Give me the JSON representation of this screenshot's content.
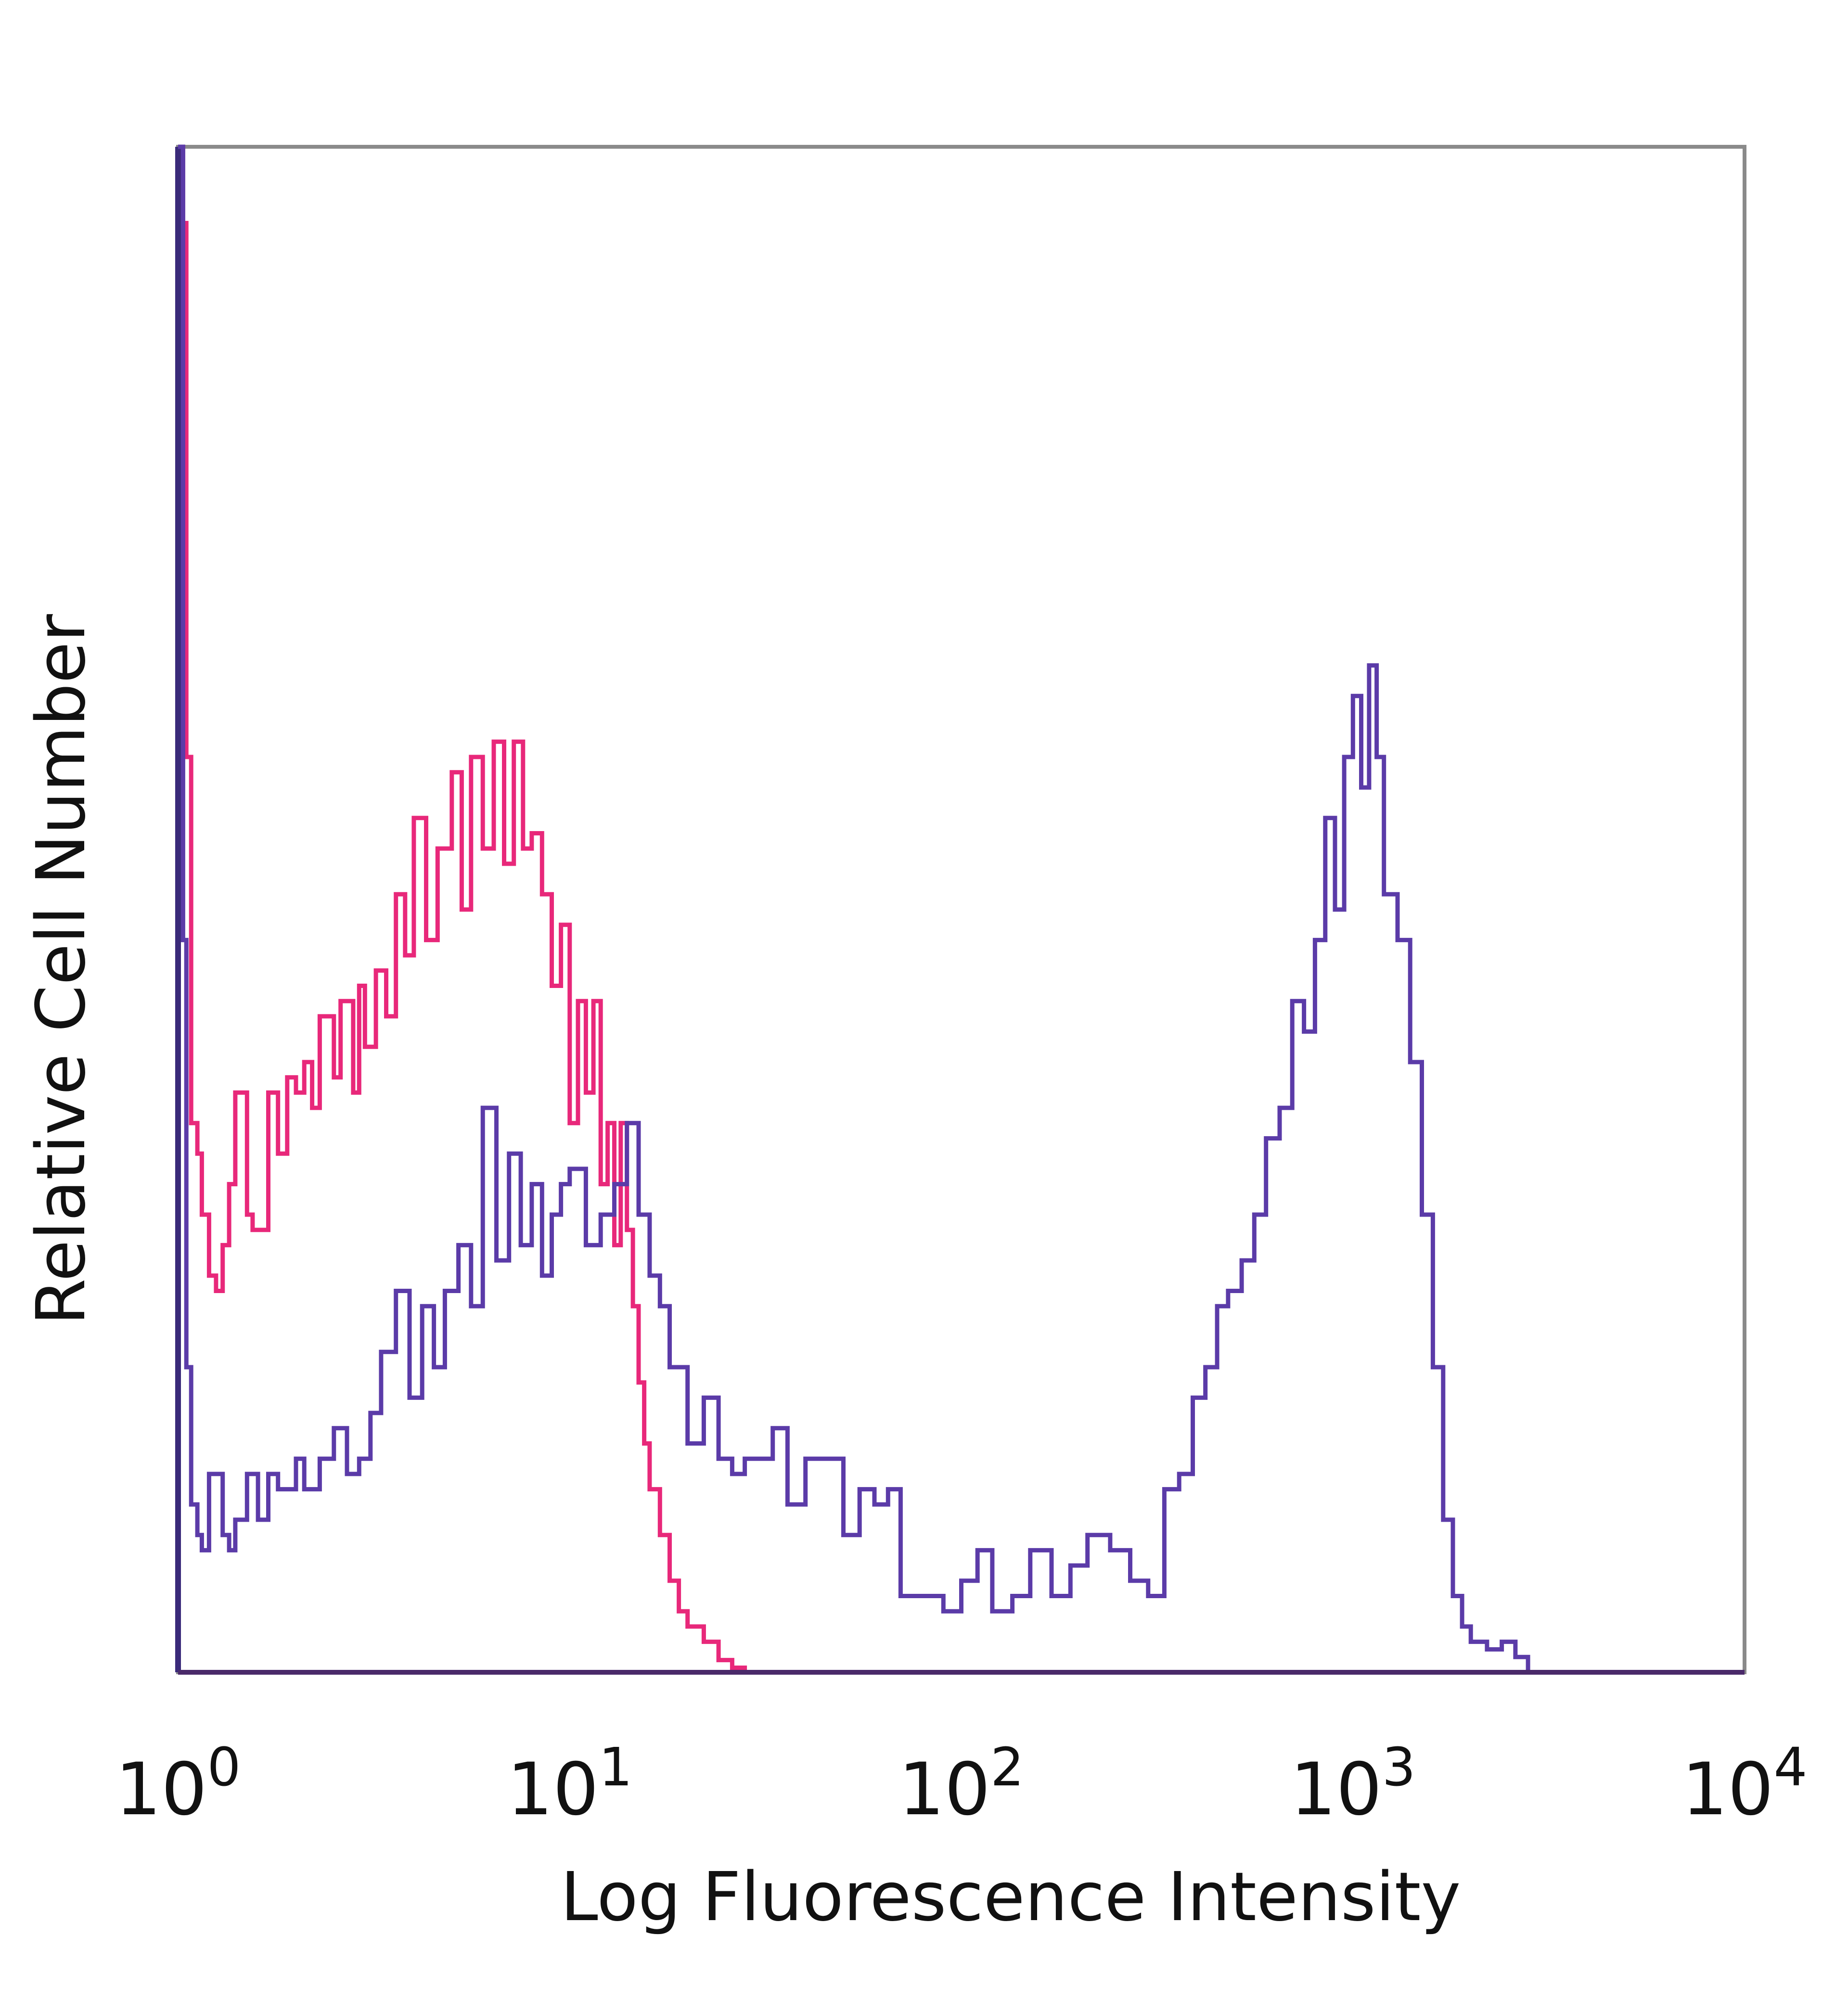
{
  "chart_data": {
    "type": "line",
    "title": "",
    "xlabel": "Log Fluorescence Intensity",
    "ylabel": "Relative Cell Number",
    "x_scale": "log",
    "xlim": [
      1,
      10000
    ],
    "ylim": [
      0,
      100
    ],
    "grid": false,
    "legend": "none",
    "x_ticks": [
      {
        "value": 1,
        "base": "10",
        "exp": "0"
      },
      {
        "value": 10,
        "base": "10",
        "exp": "1"
      },
      {
        "value": 100,
        "base": "10",
        "exp": "2"
      },
      {
        "value": 1000,
        "base": "10",
        "exp": "3"
      },
      {
        "value": 10000,
        "base": "10",
        "exp": "4"
      }
    ],
    "series": [
      {
        "color": "#e8287a",
        "x": [
          1,
          1.03,
          1.05,
          1.08,
          1.12,
          1.15,
          1.2,
          1.25,
          1.3,
          1.35,
          1.4,
          1.5,
          1.55,
          1.6,
          1.7,
          1.8,
          1.9,
          2.0,
          2.1,
          2.2,
          2.3,
          2.5,
          2.6,
          2.8,
          2.9,
          3.0,
          3.2,
          3.4,
          3.6,
          3.8,
          4.0,
          4.3,
          4.6,
          5.0,
          5.3,
          5.6,
          6.0,
          6.4,
          6.8,
          7.2,
          7.6,
          8.0,
          8.5,
          9.0,
          9.5,
          10,
          10.5,
          11,
          11.5,
          12,
          12.5,
          13,
          13.5,
          14,
          14.5,
          15,
          15.5,
          16,
          17,
          18,
          19,
          20,
          22,
          24,
          26,
          28,
          30,
          40,
          100,
          1000,
          10000
        ],
        "y": [
          100,
          95,
          60,
          36,
          34,
          30,
          26,
          25,
          28,
          32,
          38,
          30,
          29,
          29,
          38,
          34,
          39,
          38,
          40,
          37,
          43,
          39,
          44,
          38,
          45,
          41,
          46,
          43,
          51,
          47,
          56,
          48,
          54,
          59,
          50,
          60,
          54,
          61,
          53,
          61,
          54,
          55,
          51,
          45,
          49,
          36,
          44,
          38,
          44,
          32,
          36,
          28,
          36,
          29,
          24,
          19,
          15,
          12,
          9,
          6,
          4,
          3,
          2,
          0.8,
          0.3,
          0,
          0,
          0,
          0,
          0,
          0
        ]
      },
      {
        "color": "#5b3ba8",
        "x": [
          1,
          1.03,
          1.05,
          1.08,
          1.12,
          1.15,
          1.2,
          1.3,
          1.35,
          1.4,
          1.5,
          1.6,
          1.7,
          1.8,
          2.0,
          2.1,
          2.3,
          2.5,
          2.7,
          2.9,
          3.1,
          3.3,
          3.6,
          3.9,
          4.2,
          4.5,
          4.8,
          5.2,
          5.6,
          6.0,
          6.5,
          7.0,
          7.5,
          8.0,
          8.5,
          9.0,
          9.5,
          10,
          11,
          12,
          13,
          14,
          15,
          16,
          17,
          18,
          20,
          22,
          24,
          26,
          28,
          30,
          33,
          36,
          40,
          45,
          50,
          55,
          60,
          65,
          70,
          80,
          90,
          100,
          110,
          120,
          135,
          150,
          170,
          190,
          210,
          240,
          270,
          300,
          330,
          360,
          390,
          420,
          450,
          480,
          520,
          560,
          600,
          650,
          700,
          750,
          800,
          850,
          900,
          950,
          1000,
          1050,
          1100,
          1150,
          1200,
          1300,
          1400,
          1500,
          1600,
          1700,
          1800,
          1900,
          2000,
          2200,
          2400,
          2600,
          2800,
          3000,
          5000,
          10000
        ],
        "y": [
          100,
          48,
          20,
          11,
          9,
          8,
          13,
          9,
          8,
          10,
          13,
          10,
          13,
          12,
          14,
          12,
          14,
          16,
          13,
          14,
          17,
          21,
          25,
          18,
          24,
          20,
          25,
          28,
          24,
          37,
          27,
          34,
          28,
          32,
          26,
          30,
          32,
          33,
          28,
          30,
          32,
          36,
          30,
          26,
          24,
          20,
          15,
          18,
          14,
          13,
          14,
          14,
          16,
          11,
          14,
          14,
          9,
          12,
          11,
          12,
          5,
          5,
          4,
          6,
          8,
          4,
          5,
          8,
          5,
          7,
          9,
          8,
          6,
          5,
          12,
          13,
          18,
          20,
          24,
          25,
          27,
          30,
          35,
          37,
          44,
          42,
          48,
          56,
          50,
          60,
          64,
          58,
          66,
          60,
          51,
          48,
          40,
          30,
          20,
          10,
          5,
          3,
          2,
          1.5,
          2,
          1,
          0,
          0,
          0,
          0
        ]
      }
    ]
  }
}
